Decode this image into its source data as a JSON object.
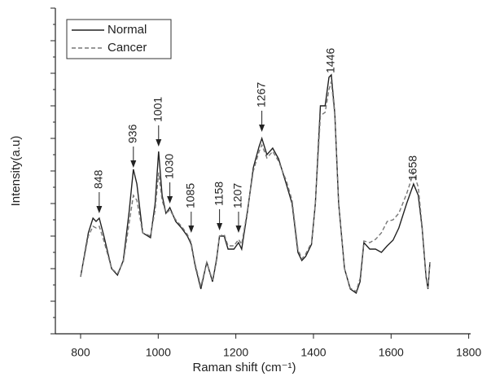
{
  "chart_data": {
    "type": "line",
    "xlabel": "Raman shift  (cm⁻¹)",
    "ylabel": "Intensity(a.u)",
    "xlim": [
      735,
      1805
    ],
    "xticks": [
      800,
      1000,
      1200,
      1400,
      1600,
      1800
    ],
    "ylim": [
      0,
      100
    ],
    "yticks": [
      0,
      5,
      10,
      15,
      20,
      25,
      30,
      35,
      40,
      45,
      50,
      55,
      60,
      65,
      70,
      75,
      80,
      85,
      90,
      95,
      100
    ],
    "legend": "top-left",
    "series": [
      {
        "name": "Normal",
        "color": "#222222",
        "dash": "solid",
        "x": [
          800,
          820,
          832,
          840,
          848,
          860,
          880,
          895,
          910,
          925,
          936,
          945,
          960,
          980,
          992,
          1001,
          1010,
          1020,
          1030,
          1045,
          1060,
          1075,
          1085,
          1095,
          1110,
          1125,
          1140,
          1150,
          1158,
          1170,
          1180,
          1195,
          1207,
          1215,
          1230,
          1245,
          1260,
          1267,
          1280,
          1295,
          1310,
          1330,
          1345,
          1360,
          1370,
          1380,
          1395,
          1405,
          1418,
          1430,
          1440,
          1446,
          1455,
          1465,
          1480,
          1495,
          1510,
          1520,
          1530,
          1545,
          1560,
          1575,
          1590,
          1605,
          1620,
          1640,
          1658,
          1670,
          1680,
          1690,
          1695,
          1700
        ],
        "values": [
          17.5,
          31,
          35.5,
          34.5,
          35.5,
          30,
          20,
          18,
          22.5,
          37.5,
          50.5,
          46,
          31,
          29.5,
          40,
          56,
          42.5,
          37,
          38.75,
          34.5,
          32.5,
          30,
          27.5,
          21,
          13.75,
          22,
          16,
          22.5,
          30,
          30,
          26,
          26,
          28,
          26,
          37.5,
          51,
          57.5,
          60,
          55,
          57,
          53.75,
          46,
          40,
          25,
          22.5,
          23.75,
          27.5,
          40,
          70,
          70,
          78.75,
          79.5,
          67.5,
          40,
          20,
          13.75,
          12.5,
          16,
          28,
          26,
          26,
          25,
          27,
          28.75,
          32.5,
          40,
          46,
          42.5,
          32.5,
          17.5,
          13.75,
          22
        ]
      },
      {
        "name": "Cancer",
        "color": "#777777",
        "dash": "dashed",
        "x": [
          800,
          820,
          832,
          840,
          848,
          860,
          880,
          895,
          910,
          925,
          936,
          945,
          960,
          980,
          992,
          1001,
          1010,
          1020,
          1030,
          1045,
          1060,
          1075,
          1085,
          1095,
          1110,
          1125,
          1140,
          1150,
          1158,
          1170,
          1180,
          1195,
          1207,
          1215,
          1230,
          1245,
          1260,
          1267,
          1280,
          1295,
          1310,
          1330,
          1345,
          1360,
          1370,
          1380,
          1395,
          1405,
          1418,
          1430,
          1440,
          1446,
          1455,
          1465,
          1480,
          1495,
          1510,
          1520,
          1530,
          1545,
          1560,
          1575,
          1590,
          1605,
          1620,
          1640,
          1658,
          1670,
          1680,
          1690,
          1695,
          1700
        ],
        "values": [
          17.5,
          30,
          33,
          32.5,
          33,
          28.5,
          20,
          18.5,
          22,
          34,
          42.5,
          41,
          31,
          30,
          38,
          49.5,
          41,
          37,
          38,
          35,
          33,
          30.5,
          28,
          21.5,
          14.5,
          22,
          16.5,
          23,
          30,
          30.5,
          27,
          27,
          29,
          27.5,
          38,
          50,
          56,
          58,
          54,
          56,
          53,
          47,
          41,
          26,
          23,
          24.5,
          28,
          40,
          67,
          68,
          75,
          77.5,
          67,
          40,
          20,
          14,
          13,
          17,
          28.5,
          28,
          29,
          31,
          34.5,
          35,
          37,
          43,
          49.5,
          45,
          33,
          18,
          14,
          22
        ]
      }
    ],
    "annotations": [
      {
        "label": "848",
        "x": 848,
        "y": 37,
        "arrow": true
      },
      {
        "label": "936",
        "x": 936,
        "y": 51,
        "arrow": true
      },
      {
        "label": "1001",
        "x": 1001,
        "y": 57.5,
        "arrow": true
      },
      {
        "label": "1030",
        "x": 1030,
        "y": 40,
        "arrow": true
      },
      {
        "label": "1085",
        "x": 1085,
        "y": 31,
        "arrow": true
      },
      {
        "label": "1158",
        "x": 1158,
        "y": 31.75,
        "arrow": true
      },
      {
        "label": "1207",
        "x": 1207,
        "y": 31,
        "arrow": true
      },
      {
        "label": "1267",
        "x": 1267,
        "y": 62,
        "arrow": true
      },
      {
        "label": "1446",
        "x": 1446,
        "y": 80,
        "arrow": false
      },
      {
        "label": "1658",
        "x": 1658,
        "y": 47,
        "arrow": false
      }
    ]
  }
}
